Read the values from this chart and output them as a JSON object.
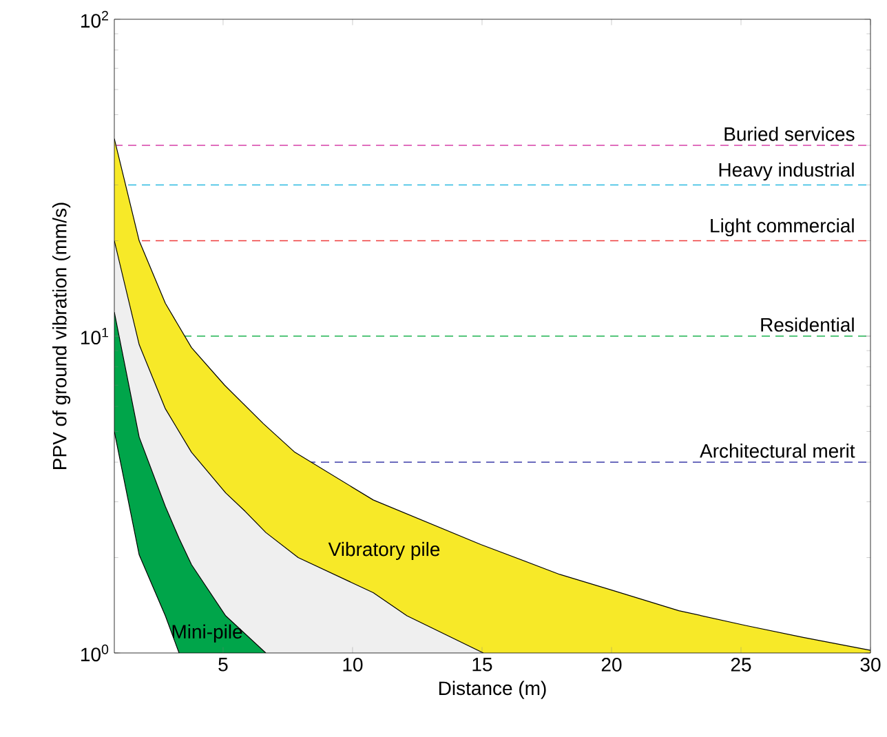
{
  "chart_data": {
    "type": "area",
    "xlabel": "Distance (m)",
    "ylabel": "PPV of ground vibration (mm/s)",
    "log": "y",
    "xlim": [
      0.8,
      30
    ],
    "ylim": [
      1,
      100
    ],
    "xticks": [
      5,
      10,
      15,
      20,
      25,
      30
    ],
    "yticks": [
      {
        "value": 1,
        "label": "10$^{0}$"
      },
      {
        "value": 10,
        "label": "10$^{1}$"
      },
      {
        "value": 100,
        "label": "10$^{2}$"
      }
    ],
    "grid": false,
    "series": [
      {
        "name": "Vibratory pile",
        "color": "#f7e928",
        "x": [
          0.8,
          1.76,
          2.77,
          3.78,
          5.06,
          6.55,
          7.77,
          10.8,
          14.95,
          18,
          20,
          22.6,
          25.2,
          27.4,
          30
        ],
        "values": [
          42,
          20,
          12.7,
          9.2,
          7.0,
          5.3,
          4.3,
          3.04,
          2.2,
          1.77,
          1.58,
          1.36,
          1.22,
          1.12,
          1.02
        ]
      },
      {
        "color": "#efefef",
        "x": [
          0.8,
          1.76,
          2.77,
          3.78,
          5.1,
          5.85,
          6.65,
          7.9,
          10.8,
          12.1,
          15.05
        ],
        "values": [
          20,
          9.4,
          5.9,
          4.3,
          3.2,
          2.8,
          2.4,
          2.0,
          1.55,
          1.31,
          1.0
        ]
      },
      {
        "name": "Mini-pile",
        "color": "#00a54a",
        "x": [
          0.8,
          1.76,
          2.77,
          3.3,
          3.78,
          5.1,
          6.65
        ],
        "values": [
          11.9,
          4.8,
          2.9,
          2.3,
          1.9,
          1.31,
          1.0
        ]
      },
      {
        "color": "#ffffff",
        "x": [
          0.8,
          1.76,
          2.77,
          3.3
        ],
        "values": [
          5.0,
          2.04,
          1.31,
          1.0
        ]
      }
    ],
    "ref_lines": [
      {
        "axis": "y",
        "value": 40,
        "label": "Buried services",
        "color": "#d63fa8",
        "line_style": "dashed"
      },
      {
        "axis": "y",
        "value": 30,
        "label": "Heavy industrial",
        "color": "#29b9e0",
        "line_style": "dashed"
      },
      {
        "axis": "y",
        "value": 20,
        "label": "Light commercial",
        "color": "#ef3b3b",
        "line_style": "dashed"
      },
      {
        "axis": "y",
        "value": 10,
        "label": "Residential",
        "color": "#1db34f",
        "line_style": "dashed"
      },
      {
        "axis": "y",
        "value": 4,
        "label": "Architectural merit",
        "color": "#3b3ba8",
        "line_style": "dashed"
      }
    ]
  }
}
